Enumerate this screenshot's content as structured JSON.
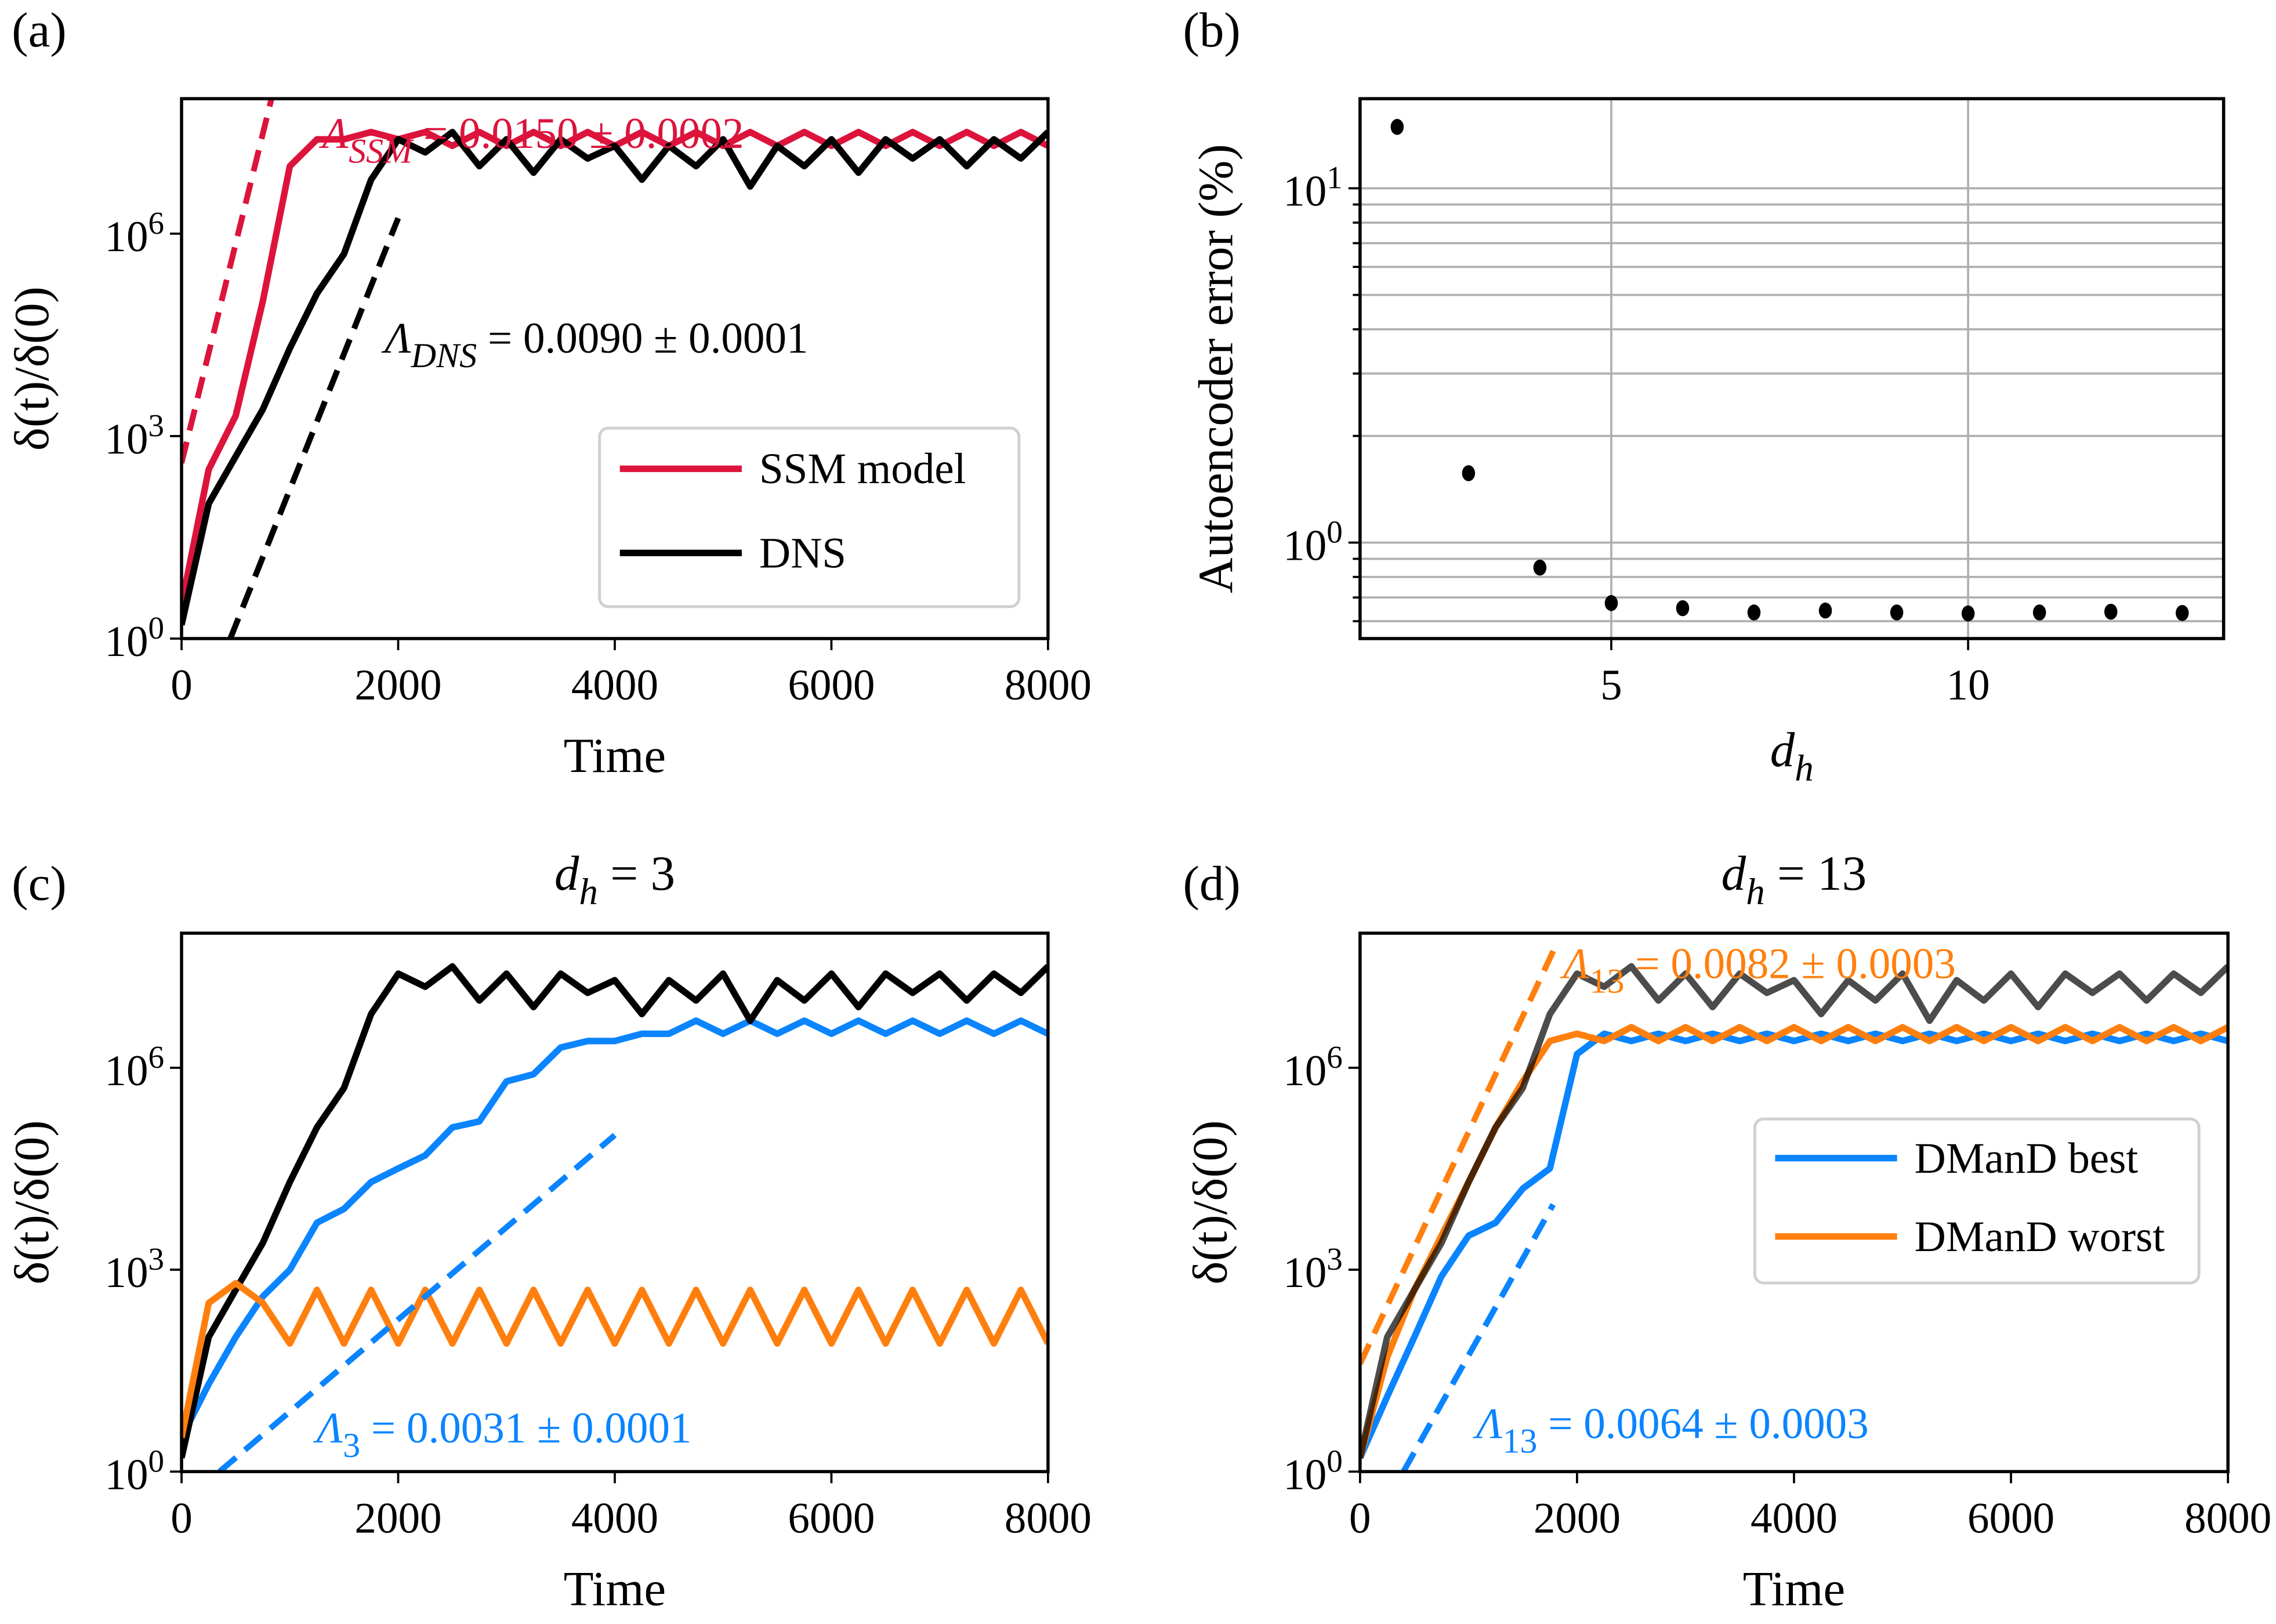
{
  "chart_data": [
    {
      "panel": "(a)",
      "type": "line",
      "title": "",
      "xlabel": "Time",
      "ylabel": "δ(t)/δ(0)",
      "xlim": [
        0,
        8000
      ],
      "ylim": [
        1,
        100000000
      ],
      "yscale": "log",
      "grid": false,
      "xticks": [
        0,
        2000,
        4000,
        6000,
        8000
      ],
      "xtick_labels": [
        "0",
        "2000",
        "4000",
        "6000",
        "8000"
      ],
      "yticks": [
        1,
        1000,
        1000000
      ],
      "ytick_labels": [
        {
          "base": "10",
          "exp": "0"
        },
        {
          "base": "10",
          "exp": "3"
        },
        {
          "base": "10",
          "exp": "6"
        }
      ],
      "legend": "lower-right",
      "x": [
        0,
        250,
        500,
        750,
        1000,
        1250,
        1500,
        1750,
        2000,
        2250,
        2500,
        2750,
        3000,
        3250,
        3500,
        3750,
        4000,
        4250,
        4500,
        4750,
        5000,
        5250,
        5500,
        5750,
        6000,
        6250,
        6500,
        6750,
        7000,
        7250,
        7500,
        7750,
        8000
      ],
      "series": [
        {
          "name": "SSM model",
          "color": "#dc143c",
          "opacity": 1,
          "values": [
            3.2,
            320,
            2000,
            100000,
            10000000,
            25000000,
            25000000,
            32000000,
            25000000,
            32000000,
            20000000,
            32000000,
            20000000,
            32000000,
            20000000,
            32000000,
            20000000,
            32000000,
            20000000,
            32000000,
            20000000,
            32000000,
            20000000,
            32000000,
            20000000,
            32000000,
            20000000,
            32000000,
            20000000,
            32000000,
            20000000,
            32000000,
            20000000
          ]
        },
        {
          "name": "DNS",
          "color": "#000000",
          "opacity": 1,
          "values": [
            1.6,
            100,
            500,
            2500,
            20000,
            130000,
            500000,
            6300000,
            25000000,
            16000000,
            32000000,
            10000000,
            25000000,
            8000000,
            25000000,
            13000000,
            20000000,
            6300000,
            20000000,
            10000000,
            25000000,
            5000000,
            20000000,
            10000000,
            25000000,
            8000000,
            25000000,
            13000000,
            25000000,
            10000000,
            25000000,
            13000000,
            32000000
          ]
        }
      ],
      "fits": [
        {
          "symbol": "Λ",
          "sub": "SSM",
          "text": " = 0.0150 ± 0.0002",
          "color": "#dc143c",
          "t": [
            0,
            830
          ],
          "y": [
            400,
            100000000
          ]
        },
        {
          "symbol": "Λ",
          "sub": "DNS",
          "text": " = 0.0090 ± 0.0001",
          "color": "#000000",
          "t": [
            450,
            2000
          ],
          "y": [
            1,
            1700000
          ]
        }
      ]
    },
    {
      "panel": "(b)",
      "type": "scatter",
      "title": "",
      "xlabel": "d",
      "xlabel_sub": "h",
      "ylabel": "Autoencoder error (%)",
      "xlim": [
        1.48,
        13.58
      ],
      "ylim": [
        0.536,
        17.9
      ],
      "yscale": "log",
      "grid": true,
      "xticks": [
        5,
        10
      ],
      "xtick_labels": [
        "5",
        "10"
      ],
      "yticks": [
        1,
        10
      ],
      "ytick_labels": [
        {
          "base": "10",
          "exp": "0"
        },
        {
          "base": "10",
          "exp": "1"
        }
      ],
      "x": [
        2,
        3,
        4,
        5,
        6,
        7,
        8,
        9,
        10,
        11,
        12,
        13
      ],
      "series": [
        {
          "color": "#000000",
          "values": [
            14.9,
            1.57,
            0.85,
            0.675,
            0.653,
            0.635,
            0.643,
            0.635,
            0.631,
            0.635,
            0.638,
            0.633
          ]
        }
      ]
    },
    {
      "panel": "(c)",
      "type": "line",
      "title": "d",
      "title_sub": "h",
      "title_rest": " = 3",
      "xlabel": "Time",
      "ylabel": "δ(t)/δ(0)",
      "xlim": [
        0,
        8000
      ],
      "ylim": [
        1,
        100000000
      ],
      "yscale": "log",
      "grid": false,
      "xticks": [
        0,
        2000,
        4000,
        6000,
        8000
      ],
      "xtick_labels": [
        "0",
        "2000",
        "4000",
        "6000",
        "8000"
      ],
      "yticks": [
        1,
        1000,
        1000000
      ],
      "ytick_labels": [
        {
          "base": "10",
          "exp": "0"
        },
        {
          "base": "10",
          "exp": "3"
        },
        {
          "base": "10",
          "exp": "6"
        }
      ],
      "x": [
        0,
        250,
        500,
        750,
        1000,
        1250,
        1500,
        1750,
        2000,
        2250,
        2500,
        2750,
        3000,
        3250,
        3500,
        3750,
        4000,
        4250,
        4500,
        4750,
        5000,
        5250,
        5500,
        5750,
        6000,
        6250,
        6500,
        6750,
        7000,
        7250,
        7500,
        7750,
        8000
      ],
      "series": [
        {
          "color": "#0a84ff",
          "opacity": 1,
          "values": [
            3.2,
            20,
            100,
            400,
            1000,
            5000,
            8000,
            20000,
            32000,
            50000,
            130000,
            160000,
            630000,
            800000,
            2000000,
            2500000,
            2500000,
            3200000,
            3200000,
            5000000,
            3200000,
            5000000,
            3200000,
            5000000,
            3200000,
            5000000,
            3200000,
            5000000,
            3200000,
            5000000,
            3200000,
            5000000,
            3200000
          ]
        },
        {
          "color": "#000000",
          "opacity": 1,
          "values": [
            1.6,
            100,
            500,
            2500,
            20000,
            130000,
            500000,
            6300000,
            25000000,
            16000000,
            32000000,
            10000000,
            25000000,
            8000000,
            25000000,
            13000000,
            20000000,
            6300000,
            20000000,
            10000000,
            25000000,
            5000000,
            20000000,
            10000000,
            25000000,
            8000000,
            25000000,
            13000000,
            25000000,
            10000000,
            25000000,
            13000000,
            32000000
          ]
        },
        {
          "color": "#ff7f0e",
          "opacity": 1,
          "values": [
            3.2,
            320,
            630,
            320,
            80,
            500,
            80,
            500,
            80,
            500,
            80,
            500,
            80,
            500,
            80,
            500,
            80,
            500,
            80,
            500,
            80,
            500,
            80,
            500,
            80,
            500,
            80,
            500,
            80,
            500,
            80,
            500,
            80
          ]
        }
      ],
      "fits": [
        {
          "symbol": "Λ",
          "sub": "3",
          "text": " = 0.0031 ± 0.0001",
          "color": "#0a84ff",
          "t": [
            350,
            4000
          ],
          "y": [
            1,
            100000
          ]
        }
      ]
    },
    {
      "panel": "(d)",
      "type": "line",
      "title": "d",
      "title_sub": "h",
      "title_rest": " = 13",
      "xlabel": "Time",
      "ylabel": "δ(t)/δ(0)",
      "xlim": [
        0,
        8000
      ],
      "ylim": [
        1,
        100000000
      ],
      "yscale": "log",
      "grid": false,
      "xticks": [
        0,
        2000,
        4000,
        6000,
        8000
      ],
      "xtick_labels": [
        "0",
        "2000",
        "4000",
        "6000",
        "8000"
      ],
      "yticks": [
        1,
        1000,
        1000000
      ],
      "ytick_labels": [
        {
          "base": "10",
          "exp": "0"
        },
        {
          "base": "10",
          "exp": "3"
        },
        {
          "base": "10",
          "exp": "6"
        }
      ],
      "legend": "center-right",
      "x": [
        0,
        250,
        500,
        750,
        1000,
        1250,
        1500,
        1750,
        2000,
        2250,
        2500,
        2750,
        3000,
        3250,
        3500,
        3750,
        4000,
        4250,
        4500,
        4750,
        5000,
        5250,
        5500,
        5750,
        6000,
        6250,
        6500,
        6750,
        7000,
        7250,
        7500,
        7750,
        8000
      ],
      "series": [
        {
          "name": "DManD best",
          "color": "#0a84ff",
          "opacity": 1,
          "values": [
            1.6,
            13,
            100,
            800,
            3200,
            5000,
            16000,
            32000,
            1600000,
            3200000,
            2500000,
            3200000,
            2500000,
            3200000,
            2500000,
            3200000,
            2500000,
            3200000,
            2500000,
            3200000,
            2500000,
            3200000,
            2500000,
            3200000,
            2500000,
            3200000,
            2500000,
            3200000,
            2500000,
            3200000,
            2500000,
            3200000,
            2500000
          ]
        },
        {
          "name": "DManD worst",
          "color": "#ff7f0e",
          "opacity": 1,
          "values": [
            1.6,
            50,
            500,
            3200,
            20000,
            130000,
            630000,
            2500000,
            3200000,
            2500000,
            4000000,
            2500000,
            4000000,
            2500000,
            4000000,
            2500000,
            4000000,
            2500000,
            4000000,
            2500000,
            4000000,
            2500000,
            4000000,
            2500000,
            4000000,
            2500000,
            4000000,
            2500000,
            4000000,
            2500000,
            4000000,
            2500000,
            4000000
          ]
        },
        {
          "color": "#000000",
          "opacity": 0.7,
          "values": [
            1.6,
            100,
            500,
            2500,
            20000,
            130000,
            500000,
            6300000,
            25000000,
            16000000,
            32000000,
            10000000,
            25000000,
            8000000,
            25000000,
            13000000,
            20000000,
            6300000,
            20000000,
            10000000,
            25000000,
            5000000,
            20000000,
            10000000,
            25000000,
            8000000,
            25000000,
            13000000,
            25000000,
            10000000,
            25000000,
            13000000,
            32000000
          ]
        }
      ],
      "fits": [
        {
          "symbol": "Λ",
          "sub": "13",
          "text": " = 0.0082 ± 0.0003",
          "color": "#ff7f0e",
          "t": [
            0,
            1800
          ],
          "y": [
            40,
            63000000
          ]
        },
        {
          "symbol": "Λ",
          "sub": "13",
          "text": " = 0.0064 ± 0.0003",
          "color": "#0a84ff",
          "t": [
            400,
            1780
          ],
          "y": [
            1,
            9300
          ]
        }
      ]
    }
  ]
}
